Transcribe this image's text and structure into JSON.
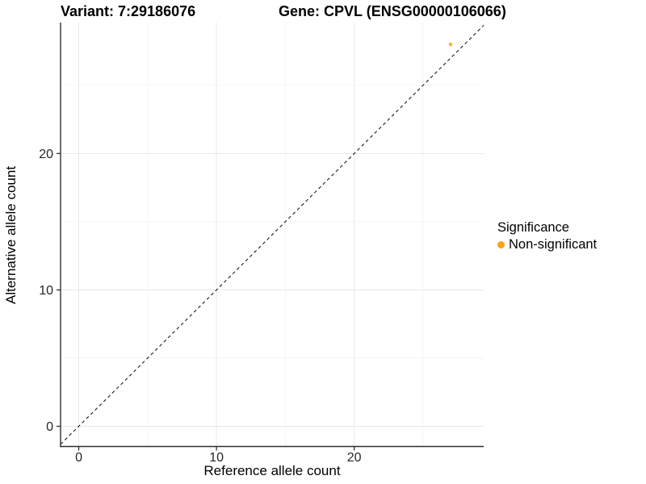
{
  "chart_data": {
    "type": "scatter",
    "title_left": "Variant: 7:29186076",
    "title_right": "Gene: CPVL (ENSG00000106066)",
    "xlabel": "Reference allele count",
    "ylabel": "Alternative allele count",
    "xlim": [
      -1.32,
      29.4
    ],
    "ylim": [
      -1.48,
      29.6
    ],
    "x_ticks": [
      0,
      10,
      20
    ],
    "y_ticks": [
      0,
      10,
      20
    ],
    "x_grid": [
      0,
      5,
      10,
      15,
      20,
      25
    ],
    "y_grid": [
      0,
      5,
      10,
      15,
      20,
      25
    ],
    "grid": "on",
    "legend_position": "right",
    "series": [
      {
        "name": "Non-significant",
        "color": "#FFA216",
        "point_radius": 2.3,
        "points": [
          {
            "x": 27,
            "y": 28
          }
        ]
      }
    ],
    "reference_line": {
      "type": "identity",
      "equation": "y = x",
      "style": "dashed",
      "color": "#1A1A1A"
    }
  },
  "legend": {
    "title": "Significance",
    "items": [
      {
        "label": "Non-significant",
        "color": "#FFA216",
        "marker": "circle"
      }
    ]
  },
  "colors": {
    "accent_orange": "#FFA216",
    "axis": "#2F2F2F",
    "tick_text": "#262626",
    "grid_major": "#E8E8E8",
    "grid_minor": "#F3F3F3",
    "title_text": "#000000"
  }
}
